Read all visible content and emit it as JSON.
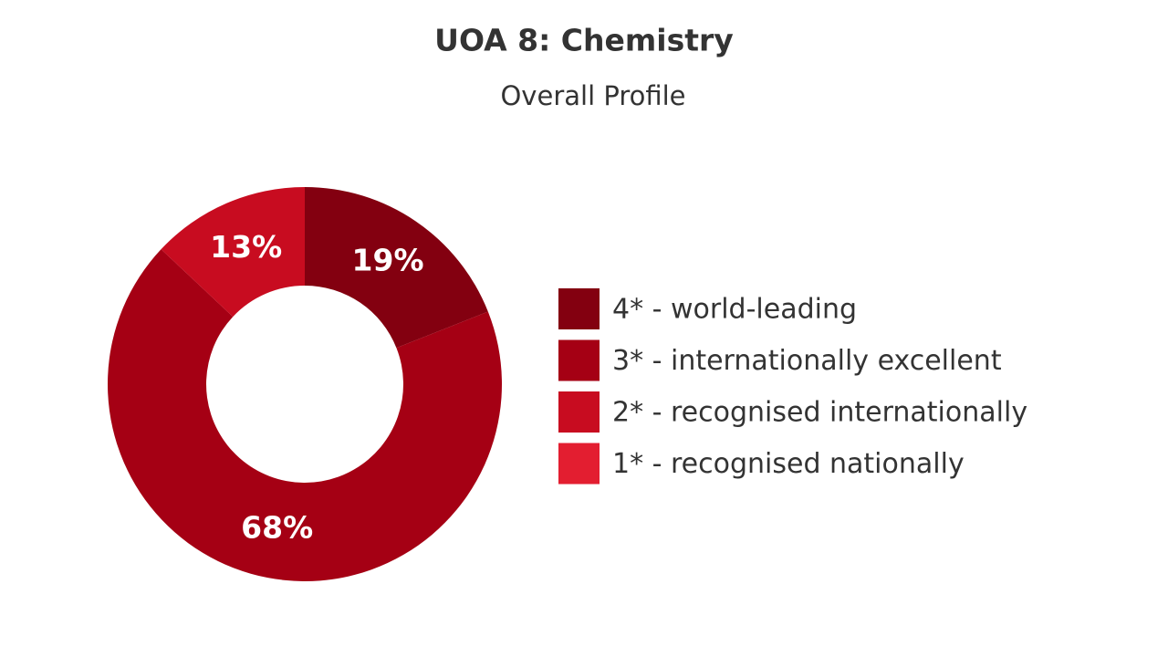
{
  "chart_data": {
    "type": "donut",
    "title": "UOA 8: Chemistry",
    "subtitle": "Overall Profile",
    "categories": [
      "4* - world-leading",
      "3* - internationally excellent",
      "2* - recognised internationally",
      "1* - recognised nationally"
    ],
    "values": [
      19,
      68,
      13,
      0
    ],
    "value_labels": [
      "19%",
      "68%",
      "13%",
      null
    ],
    "colors": [
      "#830010",
      "#a50014",
      "#c80c20",
      "#e31e30"
    ],
    "legend": "right"
  }
}
